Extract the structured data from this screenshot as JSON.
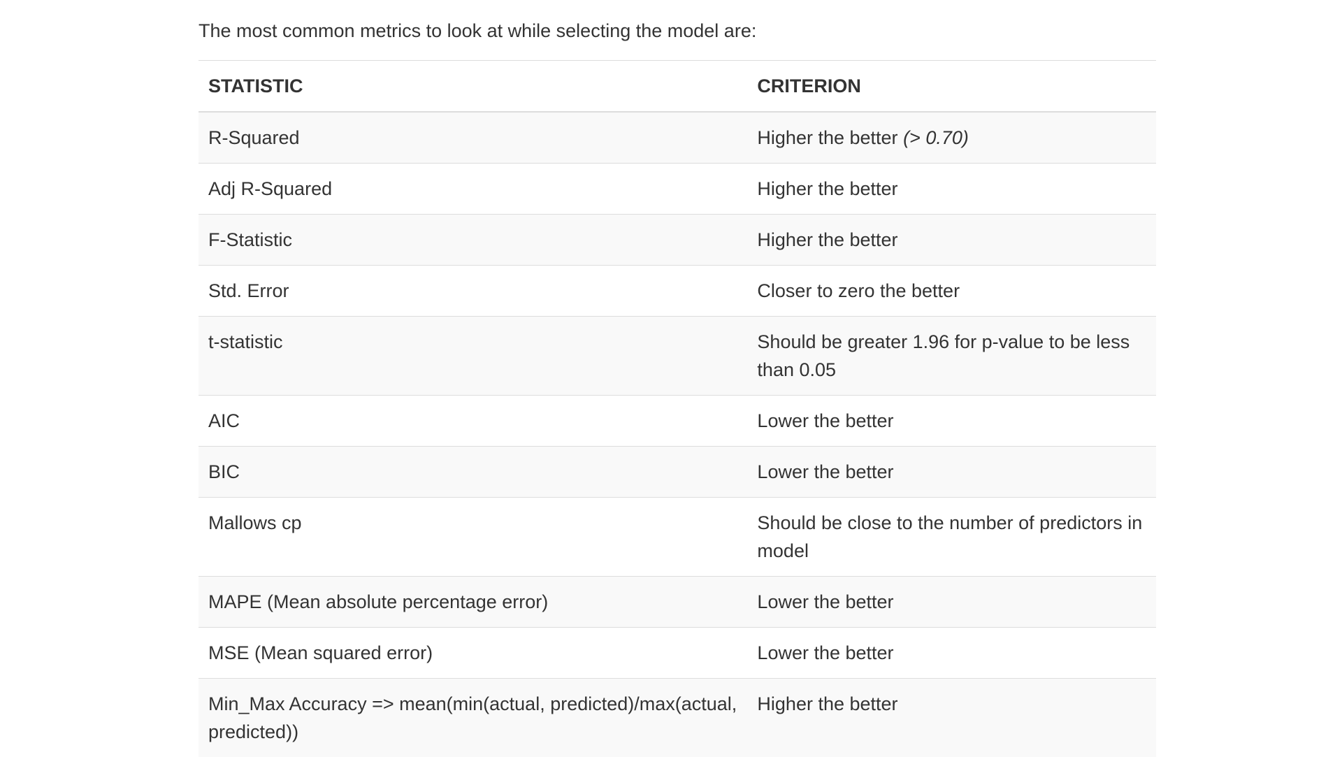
{
  "intro": "The most common metrics to look at while selecting the model are:",
  "table": {
    "headers": {
      "statistic": "STATISTIC",
      "criterion": "CRITERION"
    },
    "rows": [
      {
        "statistic": "R-Squared",
        "criterion": "Higher the better",
        "note": "(> 0.70)"
      },
      {
        "statistic": "Adj R-Squared",
        "criterion": "Higher the better"
      },
      {
        "statistic": "F-Statistic",
        "criterion": "Higher the better"
      },
      {
        "statistic": "Std. Error",
        "criterion": "Closer to zero the better"
      },
      {
        "statistic": "t-statistic",
        "criterion": "Should be greater 1.96 for p-value to be less than 0.05"
      },
      {
        "statistic": "AIC",
        "criterion": "Lower the better"
      },
      {
        "statistic": "BIC",
        "criterion": "Lower the better"
      },
      {
        "statistic": "Mallows cp",
        "criterion": "Should be close to the number of predictors in model"
      },
      {
        "statistic": "MAPE (Mean absolute percentage error)",
        "criterion": "Lower the better"
      },
      {
        "statistic": "MSE (Mean squared error)",
        "criterion": "Lower the better"
      },
      {
        "statistic": "Min_Max Accuracy => mean(min(actual, predicted)/max(actual, predicted))",
        "criterion": "Higher the better"
      }
    ]
  }
}
